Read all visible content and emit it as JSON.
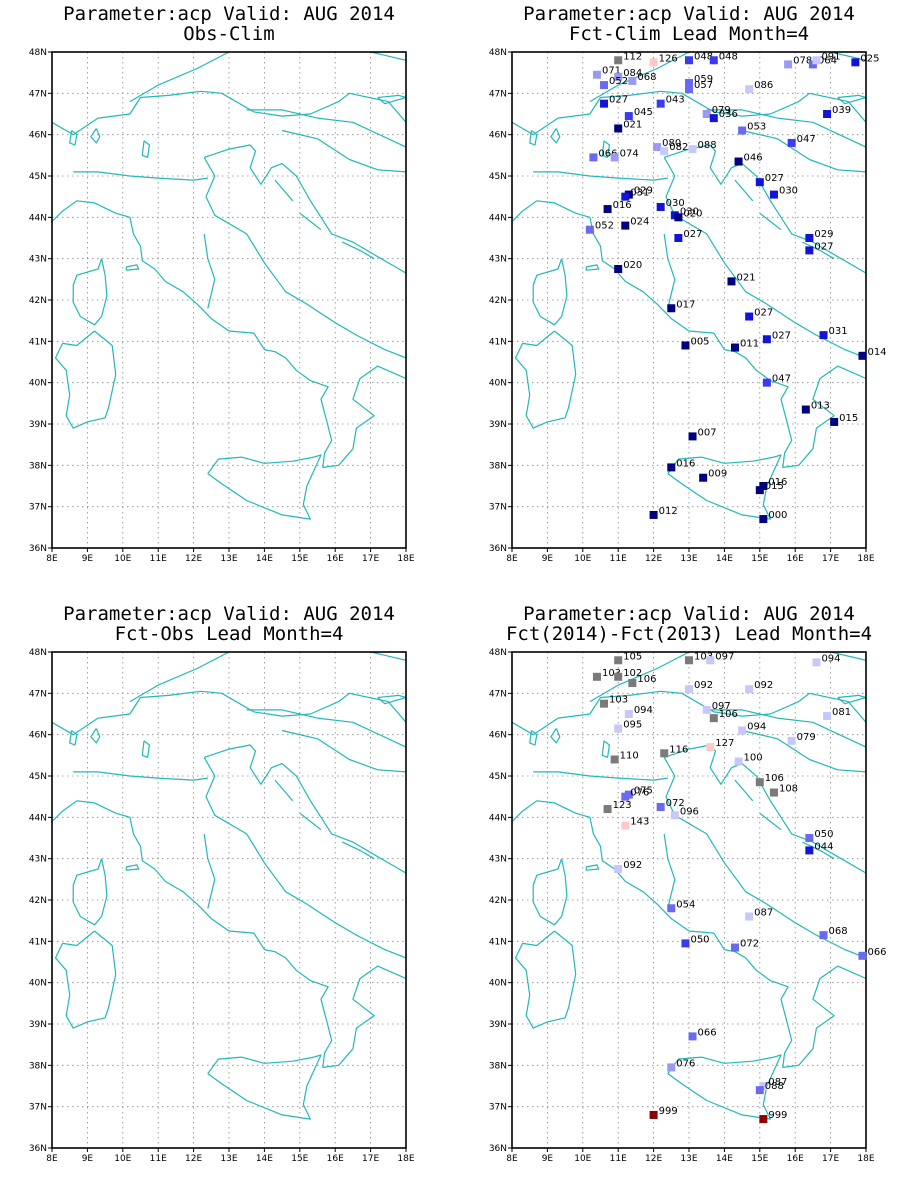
{
  "colors": {
    "coast": "#22b8b8",
    "grid": "#888888",
    "frame": "#000000",
    "station_scale": [
      "#000080",
      "#1414d8",
      "#3a3af0",
      "#6a6af0",
      "#9a9af4",
      "#c8c8f8",
      "#ffc8c8",
      "#8c0000"
    ],
    "neutral": "#7a7a7a"
  },
  "axes": {
    "lon_ticks": [
      "8E",
      "9E",
      "10E",
      "11E",
      "12E",
      "13E",
      "14E",
      "15E",
      "16E",
      "17E",
      "18E"
    ],
    "lat_ticks": [
      "36N",
      "37N",
      "38N",
      "39N",
      "40N",
      "41N",
      "42N",
      "43N",
      "44N",
      "45N",
      "46N",
      "47N",
      "48N"
    ],
    "lon_range": [
      8,
      18
    ],
    "lat_range": [
      36,
      48
    ],
    "grid": "dotted"
  },
  "panels": [
    {
      "id": "obs-clim",
      "title_line1": "Parameter:acp Valid: AUG 2014",
      "title_line2": "Obs-Clim",
      "stations": []
    },
    {
      "id": "fct-clim",
      "title_line1": "Parameter:acp Valid: AUG 2014",
      "title_line2": "Fct-Clim Lead Month=4",
      "stations": [
        {
          "lon": 11.0,
          "lat": 47.8,
          "label": "112",
          "c": "neutral"
        },
        {
          "lon": 12.0,
          "lat": 47.75,
          "label": "126",
          "c": 6
        },
        {
          "lon": 13.0,
          "lat": 47.8,
          "label": "048",
          "c": 2
        },
        {
          "lon": 13.7,
          "lat": 47.8,
          "label": "048",
          "c": 2
        },
        {
          "lon": 15.8,
          "lat": 47.7,
          "label": "078",
          "c": 4
        },
        {
          "lon": 16.5,
          "lat": 47.7,
          "label": "064",
          "c": 3
        },
        {
          "lon": 16.6,
          "lat": 47.8,
          "label": "091",
          "c": 5
        },
        {
          "lon": 17.7,
          "lat": 47.75,
          "label": "025",
          "c": 1
        },
        {
          "lon": 10.4,
          "lat": 47.45,
          "label": "071",
          "c": 4
        },
        {
          "lon": 11.0,
          "lat": 47.4,
          "label": "084",
          "c": 4
        },
        {
          "lon": 11.4,
          "lat": 47.3,
          "label": "068",
          "c": 4
        },
        {
          "lon": 10.6,
          "lat": 47.2,
          "label": "052",
          "c": 3
        },
        {
          "lon": 13.0,
          "lat": 47.25,
          "label": "059",
          "c": 3
        },
        {
          "lon": 13.0,
          "lat": 47.1,
          "label": "057",
          "c": 3
        },
        {
          "lon": 14.7,
          "lat": 47.1,
          "label": "086",
          "c": 5
        },
        {
          "lon": 10.6,
          "lat": 46.75,
          "label": "027",
          "c": 1
        },
        {
          "lon": 12.2,
          "lat": 46.75,
          "label": "043",
          "c": 2
        },
        {
          "lon": 11.3,
          "lat": 46.45,
          "label": "045",
          "c": 2
        },
        {
          "lon": 13.5,
          "lat": 46.5,
          "label": "079",
          "c": 4
        },
        {
          "lon": 13.7,
          "lat": 46.4,
          "label": "036",
          "c": 1
        },
        {
          "lon": 16.9,
          "lat": 46.5,
          "label": "039",
          "c": 1
        },
        {
          "lon": 11.0,
          "lat": 46.15,
          "label": "021",
          "c": 0
        },
        {
          "lon": 14.5,
          "lat": 46.1,
          "label": "053",
          "c": 3
        },
        {
          "lon": 15.9,
          "lat": 45.8,
          "label": "047",
          "c": 2
        },
        {
          "lon": 12.1,
          "lat": 45.7,
          "label": "080",
          "c": 4
        },
        {
          "lon": 12.3,
          "lat": 45.6,
          "label": "082",
          "c": 5
        },
        {
          "lon": 13.1,
          "lat": 45.65,
          "label": "088",
          "c": 5
        },
        {
          "lon": 10.3,
          "lat": 45.45,
          "label": "066",
          "c": 3
        },
        {
          "lon": 10.9,
          "lat": 45.45,
          "label": "074",
          "c": 4
        },
        {
          "lon": 14.4,
          "lat": 45.35,
          "label": "046",
          "c": 0
        },
        {
          "lon": 15.0,
          "lat": 44.85,
          "label": "027",
          "c": 1
        },
        {
          "lon": 15.4,
          "lat": 44.55,
          "label": "030",
          "c": 1
        },
        {
          "lon": 11.3,
          "lat": 44.55,
          "label": "029",
          "c": 0
        },
        {
          "lon": 11.2,
          "lat": 44.5,
          "label": "031",
          "c": 1
        },
        {
          "lon": 10.7,
          "lat": 44.2,
          "label": "016",
          "c": 0
        },
        {
          "lon": 12.2,
          "lat": 44.25,
          "label": "030",
          "c": 1
        },
        {
          "lon": 12.6,
          "lat": 44.05,
          "label": "030",
          "c": 1
        },
        {
          "lon": 12.7,
          "lat": 44.0,
          "label": "020",
          "c": 0
        },
        {
          "lon": 11.2,
          "lat": 43.8,
          "label": "024",
          "c": 0
        },
        {
          "lon": 10.2,
          "lat": 43.7,
          "label": "052",
          "c": 3
        },
        {
          "lon": 12.7,
          "lat": 43.5,
          "label": "027",
          "c": 1
        },
        {
          "lon": 16.4,
          "lat": 43.5,
          "label": "029",
          "c": 1
        },
        {
          "lon": 16.4,
          "lat": 43.2,
          "label": "027",
          "c": 1
        },
        {
          "lon": 11.0,
          "lat": 42.75,
          "label": "020",
          "c": 0
        },
        {
          "lon": 14.2,
          "lat": 42.45,
          "label": "021",
          "c": 0
        },
        {
          "lon": 12.5,
          "lat": 41.8,
          "label": "017",
          "c": 0
        },
        {
          "lon": 14.7,
          "lat": 41.6,
          "label": "027",
          "c": 1
        },
        {
          "lon": 16.8,
          "lat": 41.15,
          "label": "031",
          "c": 1
        },
        {
          "lon": 15.2,
          "lat": 41.05,
          "label": "027",
          "c": 1
        },
        {
          "lon": 12.9,
          "lat": 40.9,
          "label": "005",
          "c": 0
        },
        {
          "lon": 14.3,
          "lat": 40.85,
          "label": "011",
          "c": 0
        },
        {
          "lon": 17.9,
          "lat": 40.65,
          "label": "014",
          "c": 0
        },
        {
          "lon": 15.2,
          "lat": 40.0,
          "label": "047",
          "c": 2
        },
        {
          "lon": 16.3,
          "lat": 39.35,
          "label": "013",
          "c": 0
        },
        {
          "lon": 17.1,
          "lat": 39.05,
          "label": "015",
          "c": 0
        },
        {
          "lon": 13.1,
          "lat": 38.7,
          "label": "007",
          "c": 0
        },
        {
          "lon": 12.5,
          "lat": 37.95,
          "label": "016",
          "c": 0
        },
        {
          "lon": 13.4,
          "lat": 37.7,
          "label": "009",
          "c": 0
        },
        {
          "lon": 15.1,
          "lat": 37.5,
          "label": "016",
          "c": 0
        },
        {
          "lon": 15.0,
          "lat": 37.4,
          "label": "015",
          "c": 0
        },
        {
          "lon": 12.0,
          "lat": 36.8,
          "label": "012",
          "c": 0
        },
        {
          "lon": 15.1,
          "lat": 36.7,
          "label": "000",
          "c": 0
        }
      ]
    },
    {
      "id": "fct-obs",
      "title_line1": "Parameter:acp Valid: AUG 2014",
      "title_line2": "Fct-Obs Lead Month=4",
      "stations": []
    },
    {
      "id": "fct-fct",
      "title_line1": "Parameter:acp Valid: AUG 2014",
      "title_line2": "Fct(2014)-Fct(2013) Lead Month=4",
      "stations": [
        {
          "lon": 11.0,
          "lat": 47.8,
          "label": "105",
          "c": "neutral"
        },
        {
          "lon": 13.0,
          "lat": 47.8,
          "label": "103",
          "c": "neutral"
        },
        {
          "lon": 13.6,
          "lat": 47.8,
          "label": "097",
          "c": 5
        },
        {
          "lon": 16.6,
          "lat": 47.75,
          "label": "094",
          "c": 5
        },
        {
          "lon": 10.4,
          "lat": 47.4,
          "label": "103",
          "c": "neutral"
        },
        {
          "lon": 11.0,
          "lat": 47.4,
          "label": "102",
          "c": "neutral"
        },
        {
          "lon": 11.4,
          "lat": 47.25,
          "label": "106",
          "c": "neutral"
        },
        {
          "lon": 13.0,
          "lat": 47.1,
          "label": "092",
          "c": 5
        },
        {
          "lon": 14.7,
          "lat": 47.1,
          "label": "092",
          "c": 5
        },
        {
          "lon": 10.6,
          "lat": 46.75,
          "label": "103",
          "c": "neutral"
        },
        {
          "lon": 13.5,
          "lat": 46.6,
          "label": "097",
          "c": 5
        },
        {
          "lon": 11.3,
          "lat": 46.5,
          "label": "094",
          "c": 5
        },
        {
          "lon": 13.7,
          "lat": 46.4,
          "label": "106",
          "c": "neutral"
        },
        {
          "lon": 16.9,
          "lat": 46.45,
          "label": "081",
          "c": 5
        },
        {
          "lon": 14.5,
          "lat": 46.1,
          "label": "094",
          "c": 5
        },
        {
          "lon": 11.0,
          "lat": 46.15,
          "label": "095",
          "c": 5
        },
        {
          "lon": 15.9,
          "lat": 45.85,
          "label": "079",
          "c": 5
        },
        {
          "lon": 13.6,
          "lat": 45.7,
          "label": "127",
          "c": 6
        },
        {
          "lon": 12.3,
          "lat": 45.55,
          "label": "116",
          "c": "neutral"
        },
        {
          "lon": 14.4,
          "lat": 45.35,
          "label": "100",
          "c": 5
        },
        {
          "lon": 10.9,
          "lat": 45.4,
          "label": "110",
          "c": "neutral"
        },
        {
          "lon": 15.0,
          "lat": 44.85,
          "label": "106",
          "c": "neutral"
        },
        {
          "lon": 15.4,
          "lat": 44.6,
          "label": "108",
          "c": "neutral"
        },
        {
          "lon": 11.3,
          "lat": 44.55,
          "label": "075",
          "c": 3
        },
        {
          "lon": 11.2,
          "lat": 44.5,
          "label": "076",
          "c": 3
        },
        {
          "lon": 10.7,
          "lat": 44.2,
          "label": "123",
          "c": "neutral"
        },
        {
          "lon": 12.2,
          "lat": 44.25,
          "label": "072",
          "c": 3
        },
        {
          "lon": 12.6,
          "lat": 44.05,
          "label": "096",
          "c": 5
        },
        {
          "lon": 11.2,
          "lat": 43.8,
          "label": "143",
          "c": 6
        },
        {
          "lon": 16.4,
          "lat": 43.5,
          "label": "050",
          "c": 3
        },
        {
          "lon": 16.4,
          "lat": 43.2,
          "label": "044",
          "c": 1
        },
        {
          "lon": 11.0,
          "lat": 42.75,
          "label": "092",
          "c": 5
        },
        {
          "lon": 12.5,
          "lat": 41.8,
          "label": "054",
          "c": 3
        },
        {
          "lon": 14.7,
          "lat": 41.6,
          "label": "087",
          "c": 5
        },
        {
          "lon": 16.8,
          "lat": 41.15,
          "label": "068",
          "c": 3
        },
        {
          "lon": 12.9,
          "lat": 40.95,
          "label": "050",
          "c": 2
        },
        {
          "lon": 14.3,
          "lat": 40.85,
          "label": "072",
          "c": 3
        },
        {
          "lon": 17.9,
          "lat": 40.65,
          "label": "066",
          "c": 3
        },
        {
          "lon": 13.1,
          "lat": 38.7,
          "label": "066",
          "c": 3
        },
        {
          "lon": 12.5,
          "lat": 37.95,
          "label": "076",
          "c": 4
        },
        {
          "lon": 15.1,
          "lat": 37.5,
          "label": "087",
          "c": 5
        },
        {
          "lon": 15.0,
          "lat": 37.4,
          "label": "088",
          "c": 3
        },
        {
          "lon": 12.0,
          "lat": 36.8,
          "label": "999",
          "c": 7
        },
        {
          "lon": 15.1,
          "lat": 36.7,
          "label": "999",
          "c": 7
        }
      ]
    }
  ]
}
